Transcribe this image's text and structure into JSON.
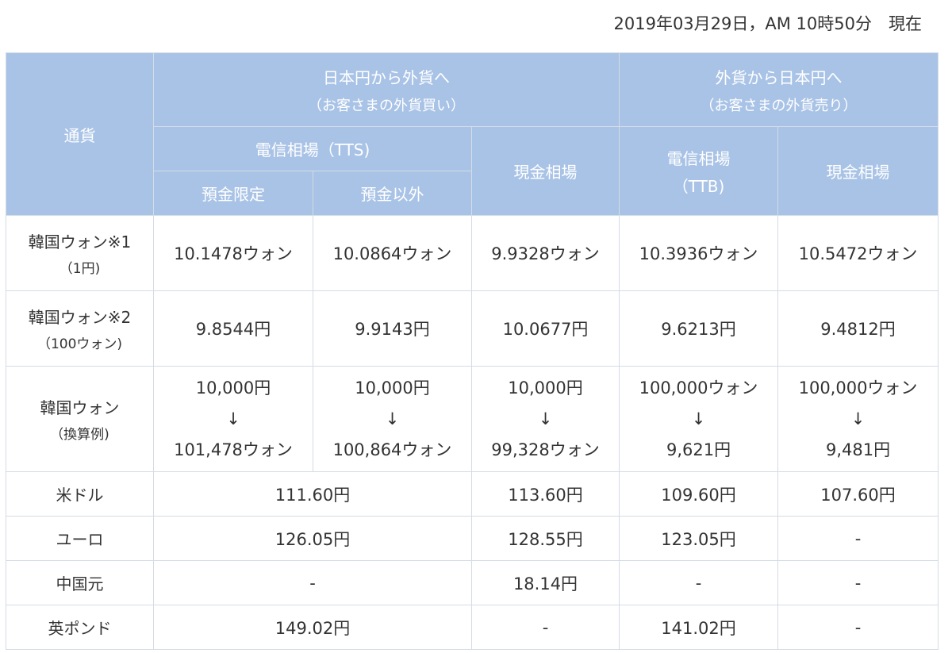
{
  "timestamp": "2019年03月29日，AM 10時50分　現在",
  "header": {
    "currency": "通貨",
    "buy_title": "日本円から外貨へ",
    "buy_sub": "（お客さまの外貨買い）",
    "sell_title": "外貨から日本円へ",
    "sell_sub": "（お客さまの外貨売り）",
    "tts": "電信相場（TTS)",
    "cash_buy": "現金相場",
    "ttb_main": "電信相場",
    "ttb_sub": "（TTB)",
    "cash_sell": "現金相場",
    "deposit_only": "預金限定",
    "non_deposit": "預金以外"
  },
  "rows": {
    "won1": {
      "name": "韓国ウォン※1",
      "note": "（1円)",
      "c1": "10.1478ウォン",
      "c2": "10.0864ウォン",
      "c3": "9.9328ウォン",
      "c4": "10.3936ウォン",
      "c5": "10.5472ウォン"
    },
    "won2": {
      "name": "韓国ウォン※2",
      "note": "（100ウォン)",
      "c1": "9.8544円",
      "c2": "9.9143円",
      "c3": "10.0677円",
      "c4": "9.6213円",
      "c5": "9.4812円"
    },
    "won3": {
      "name": "韓国ウォン",
      "note": "（換算例)",
      "arrow": "↓",
      "c1a": "10,000円",
      "c1b": "101,478ウォン",
      "c2a": "10,000円",
      "c2b": "100,864ウォン",
      "c3a": "10,000円",
      "c3b": "99,328ウォン",
      "c4a": "100,000ウォン",
      "c4b": "9,621円",
      "c5a": "100,000ウォン",
      "c5b": "9,481円"
    },
    "usd": {
      "name": "米ドル",
      "tts": "111.60円",
      "cash_buy": "113.60円",
      "ttb": "109.60円",
      "cash_sell": "107.60円"
    },
    "eur": {
      "name": "ユーロ",
      "tts": "126.05円",
      "cash_buy": "128.55円",
      "ttb": "123.05円",
      "cash_sell": "-"
    },
    "cny": {
      "name": "中国元",
      "tts": "-",
      "cash_buy": "18.14円",
      "ttb": "-",
      "cash_sell": "-"
    },
    "gbp": {
      "name": "英ポンド",
      "tts": "149.02円",
      "cash_buy": "-",
      "ttb": "141.02円",
      "cash_sell": "-"
    }
  }
}
